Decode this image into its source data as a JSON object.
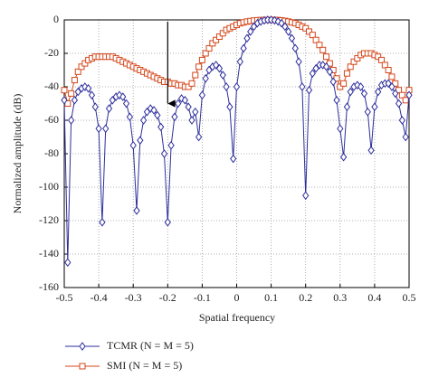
{
  "chart_data": {
    "type": "line",
    "xlabel": "Spatial frequency",
    "ylabel": "Normalized amplitude (dB)",
    "x": [
      -0.5,
      -0.49,
      -0.48,
      -0.47,
      -0.46,
      -0.45,
      -0.44,
      -0.43,
      -0.42,
      -0.41,
      -0.4,
      -0.39,
      -0.38,
      -0.37,
      -0.36,
      -0.35,
      -0.34,
      -0.33,
      -0.32,
      -0.31,
      -0.3,
      -0.29,
      -0.28,
      -0.27,
      -0.26,
      -0.25,
      -0.24,
      -0.23,
      -0.22,
      -0.21,
      -0.2,
      -0.19,
      -0.18,
      -0.17,
      -0.16,
      -0.15,
      -0.14,
      -0.13,
      -0.12,
      -0.11,
      -0.1,
      -0.09,
      -0.08,
      -0.07,
      -0.06,
      -0.05,
      -0.04,
      -0.03,
      -0.02,
      -0.01,
      0,
      0.01,
      0.02,
      0.03,
      0.04,
      0.05,
      0.06,
      0.07,
      0.08,
      0.09,
      0.1,
      0.11,
      0.12,
      0.13,
      0.14,
      0.15,
      0.16,
      0.17,
      0.18,
      0.19,
      0.2,
      0.21,
      0.22,
      0.23,
      0.24,
      0.25,
      0.26,
      0.27,
      0.28,
      0.29,
      0.3,
      0.31,
      0.32,
      0.33,
      0.34,
      0.35,
      0.36,
      0.37,
      0.38,
      0.39,
      0.4,
      0.41,
      0.42,
      0.43,
      0.44,
      0.45,
      0.46,
      0.47,
      0.48,
      0.49,
      0.5
    ],
    "series": [
      {
        "name": "TCMR (N = M = 5)",
        "color": "#2e2e9c",
        "marker": "diamond",
        "values": [
          -48,
          -145,
          -60,
          -48,
          -43,
          -41,
          -40,
          -41,
          -45,
          -52,
          -65,
          -121,
          -65,
          -53,
          -48,
          -46,
          -45,
          -46,
          -50,
          -58,
          -75,
          -114,
          -72,
          -60,
          -55,
          -53,
          -54,
          -57,
          -64,
          -80,
          -121,
          -75,
          -58,
          -50,
          -47,
          -48,
          -52,
          -60,
          -55,
          -70,
          -45,
          -35,
          -30,
          -28,
          -27,
          -29,
          -33,
          -40,
          -52,
          -83,
          -40,
          -25,
          -17,
          -11,
          -7,
          -4,
          -2,
          -1,
          -0.3,
          0,
          0,
          -0.3,
          -1,
          -2,
          -4,
          -7,
          -11,
          -17,
          -25,
          -40,
          -105,
          -42,
          -32,
          -29,
          -27,
          -27,
          -28,
          -31,
          -37,
          -48,
          -65,
          -82,
          -52,
          -43,
          -40,
          -39,
          -40,
          -44,
          -55,
          -78,
          -52,
          -43,
          -39,
          -38,
          -38,
          -40,
          -44,
          -50,
          -60,
          -70,
          -45
        ]
      },
      {
        "name": "SMI (N = M = 5)",
        "color": "#d4481c",
        "marker": "square",
        "values": [
          -42,
          -50,
          -44,
          -36,
          -31,
          -28,
          -26,
          -24,
          -23,
          -22,
          -22,
          -22,
          -22,
          -22,
          -22,
          -23,
          -24,
          -25,
          -26,
          -27,
          -28,
          -29,
          -30,
          -31,
          -32,
          -33,
          -34,
          -35,
          -36,
          -37,
          -37,
          -38,
          -38,
          -39,
          -39,
          -40,
          -40,
          -38,
          -33,
          -28,
          -24,
          -20,
          -17,
          -14,
          -12,
          -10,
          -8,
          -6,
          -5,
          -4,
          -3,
          -2,
          -1.5,
          -1,
          -0.7,
          -0.4,
          -0.2,
          -0.1,
          0,
          0,
          0,
          0,
          -0.1,
          -0.3,
          -0.6,
          -1,
          -1.5,
          -2,
          -3,
          -4,
          -5,
          -7,
          -9,
          -12,
          -15,
          -18,
          -22,
          -26,
          -30,
          -35,
          -40,
          -38,
          -32,
          -28,
          -25,
          -23,
          -21,
          -20,
          -20,
          -20,
          -21,
          -22,
          -24,
          -27,
          -30,
          -34,
          -38,
          -42,
          -45,
          -48,
          -42
        ]
      }
    ],
    "xlim": [
      -0.5,
      0.5
    ],
    "xticks": [
      -0.5,
      -0.4,
      -0.3,
      -0.2,
      -0.1,
      0,
      0.1,
      0.2,
      0.3,
      0.4,
      0.5
    ],
    "ylim": [
      -160,
      0
    ],
    "yticks": [
      0,
      -20,
      -40,
      -60,
      -80,
      -100,
      -120,
      -140,
      -160
    ],
    "grid": true,
    "legend": "bottom"
  }
}
